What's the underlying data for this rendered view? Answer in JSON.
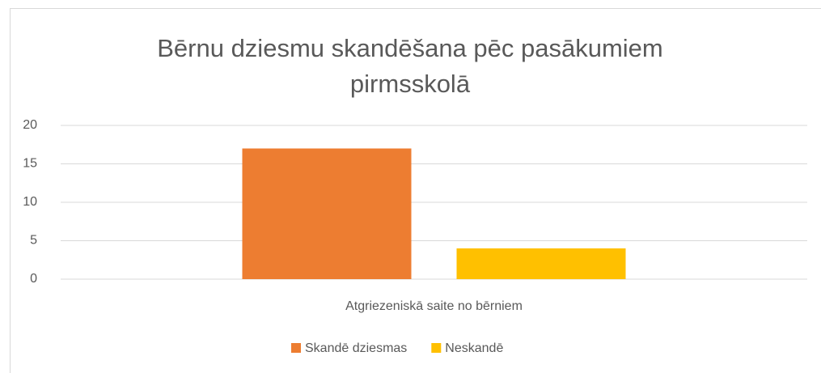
{
  "chart_data": {
    "type": "bar",
    "title": "Bērnu dziesmu skandēšana pēc pasākumiem pirmsskolā",
    "categories": [
      "Atgriezeniskā saite no bērniem"
    ],
    "series": [
      {
        "name": "Skandē dziesmas",
        "color": "#ED7D31",
        "values": [
          17
        ]
      },
      {
        "name": "Neskandē",
        "color": "#FFC000",
        "values": [
          4
        ]
      }
    ],
    "ylim": [
      0,
      20
    ],
    "yticks": [
      0,
      5,
      10,
      15,
      20
    ],
    "grid": true,
    "legend": "bottom"
  }
}
